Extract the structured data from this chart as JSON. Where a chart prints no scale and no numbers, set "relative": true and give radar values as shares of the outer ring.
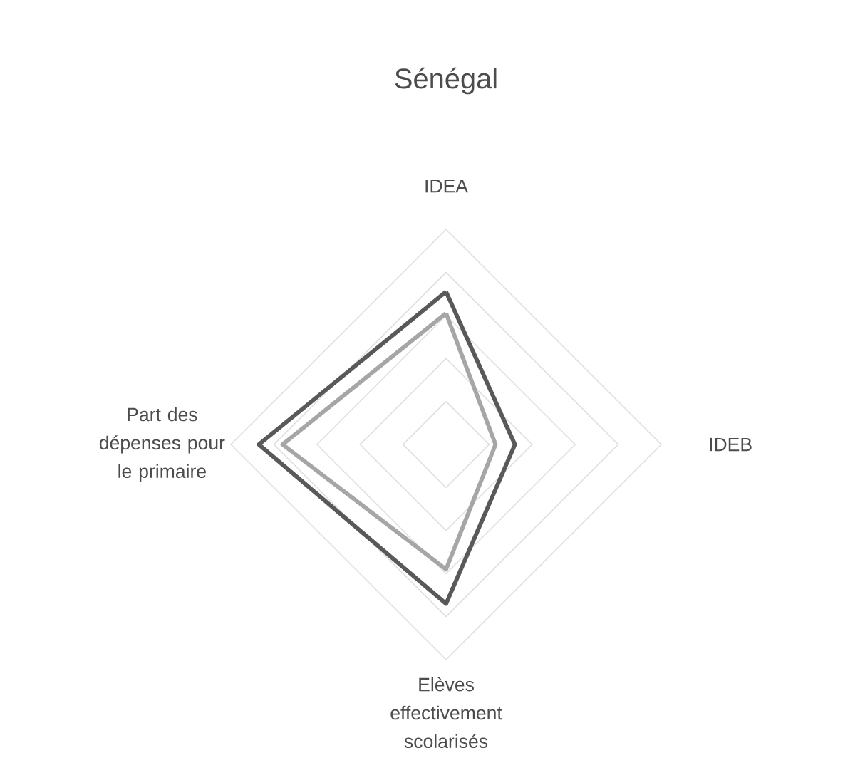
{
  "chart_data": {
    "type": "radar",
    "title": "Sénégal",
    "relative": true,
    "grid": true,
    "categories": [
      "IDEA",
      "IDEB",
      "Elèves effectivement scolarisés",
      "Part des dépenses pour le primaire"
    ],
    "series": [
      {
        "color": "#595959",
        "values": [
          0.71,
          0.32,
          0.74,
          0.87
        ]
      },
      {
        "color": "#a6a6a6",
        "values": [
          0.61,
          0.23,
          0.58,
          0.76
        ]
      }
    ]
  }
}
